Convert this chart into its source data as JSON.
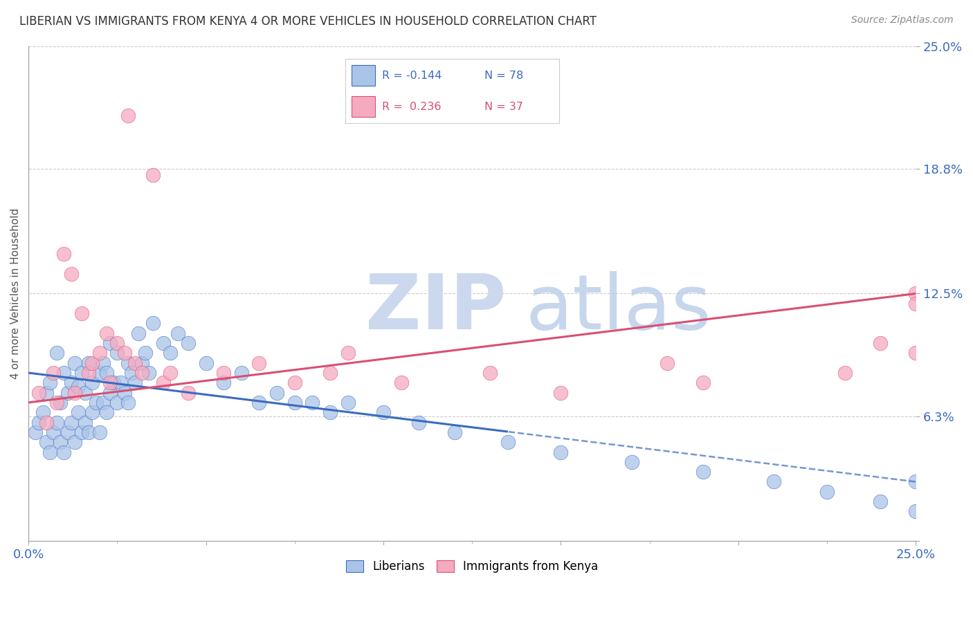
{
  "title": "LIBERIAN VS IMMIGRANTS FROM KENYA 4 OR MORE VEHICLES IN HOUSEHOLD CORRELATION CHART",
  "source": "Source: ZipAtlas.com",
  "ylabel": "4 or more Vehicles in Household",
  "xlim": [
    0.0,
    25.0
  ],
  "ylim": [
    0.0,
    25.0
  ],
  "ytick_vals": [
    0.0,
    6.3,
    12.5,
    18.8,
    25.0
  ],
  "ytick_labels": [
    "",
    "6.3%",
    "12.5%",
    "18.8%",
    "25.0%"
  ],
  "blue_color": "#aac4e8",
  "pink_color": "#f5aac0",
  "blue_line_color": "#3a6bbf",
  "pink_line_color": "#d94f72",
  "watermark_zip": "ZIP",
  "watermark_atlas": "atlas",
  "blue_r": "R = -0.144",
  "blue_n": "N = 78",
  "pink_r": "R =  0.236",
  "pink_n": "N = 37",
  "blue_trend_intercept": 8.5,
  "blue_trend_slope": -0.22,
  "blue_solid_end": 13.5,
  "pink_trend_intercept": 7.0,
  "pink_trend_slope": 0.22,
  "blue_x": [
    0.2,
    0.3,
    0.4,
    0.5,
    0.5,
    0.6,
    0.6,
    0.7,
    0.8,
    0.8,
    0.9,
    0.9,
    1.0,
    1.0,
    1.1,
    1.1,
    1.2,
    1.2,
    1.3,
    1.3,
    1.4,
    1.4,
    1.5,
    1.5,
    1.6,
    1.6,
    1.7,
    1.7,
    1.8,
    1.8,
    1.9,
    2.0,
    2.0,
    2.1,
    2.1,
    2.2,
    2.2,
    2.3,
    2.3,
    2.4,
    2.5,
    2.5,
    2.6,
    2.7,
    2.8,
    2.8,
    2.9,
    3.0,
    3.1,
    3.2,
    3.3,
    3.4,
    3.5,
    3.8,
    4.0,
    4.2,
    4.5,
    5.0,
    5.5,
    6.0,
    6.5,
    7.0,
    7.5,
    8.0,
    8.5,
    9.0,
    10.0,
    11.0,
    12.0,
    13.5,
    15.0,
    17.0,
    19.0,
    21.0,
    22.5,
    24.0,
    25.0,
    25.0
  ],
  "blue_y": [
    5.5,
    6.0,
    6.5,
    5.0,
    7.5,
    4.5,
    8.0,
    5.5,
    6.0,
    9.5,
    5.0,
    7.0,
    4.5,
    8.5,
    5.5,
    7.5,
    6.0,
    8.0,
    5.0,
    9.0,
    6.5,
    7.8,
    5.5,
    8.5,
    6.0,
    7.5,
    5.5,
    9.0,
    6.5,
    8.0,
    7.0,
    5.5,
    8.5,
    7.0,
    9.0,
    6.5,
    8.5,
    7.5,
    10.0,
    8.0,
    7.0,
    9.5,
    8.0,
    7.5,
    7.0,
    9.0,
    8.5,
    8.0,
    10.5,
    9.0,
    9.5,
    8.5,
    11.0,
    10.0,
    9.5,
    10.5,
    10.0,
    9.0,
    8.0,
    8.5,
    7.0,
    7.5,
    7.0,
    7.0,
    6.5,
    7.0,
    6.5,
    6.0,
    5.5,
    5.0,
    4.5,
    4.0,
    3.5,
    3.0,
    2.5,
    2.0,
    1.5,
    3.0
  ],
  "pink_x": [
    0.3,
    0.5,
    0.7,
    0.8,
    1.0,
    1.2,
    1.3,
    1.5,
    1.7,
    1.8,
    2.0,
    2.2,
    2.3,
    2.5,
    2.7,
    2.8,
    3.0,
    3.2,
    3.5,
    3.8,
    4.0,
    4.5,
    5.5,
    6.5,
    7.5,
    8.5,
    9.0,
    10.5,
    13.0,
    15.0,
    18.0,
    19.0,
    23.0,
    24.0,
    25.0,
    25.0,
    25.0
  ],
  "pink_y": [
    7.5,
    6.0,
    8.5,
    7.0,
    14.5,
    13.5,
    7.5,
    11.5,
    8.5,
    9.0,
    9.5,
    10.5,
    8.0,
    10.0,
    9.5,
    21.5,
    9.0,
    8.5,
    18.5,
    8.0,
    8.5,
    7.5,
    8.5,
    9.0,
    8.0,
    8.5,
    9.5,
    8.0,
    8.5,
    7.5,
    9.0,
    8.0,
    8.5,
    10.0,
    12.5,
    12.0,
    9.5
  ]
}
